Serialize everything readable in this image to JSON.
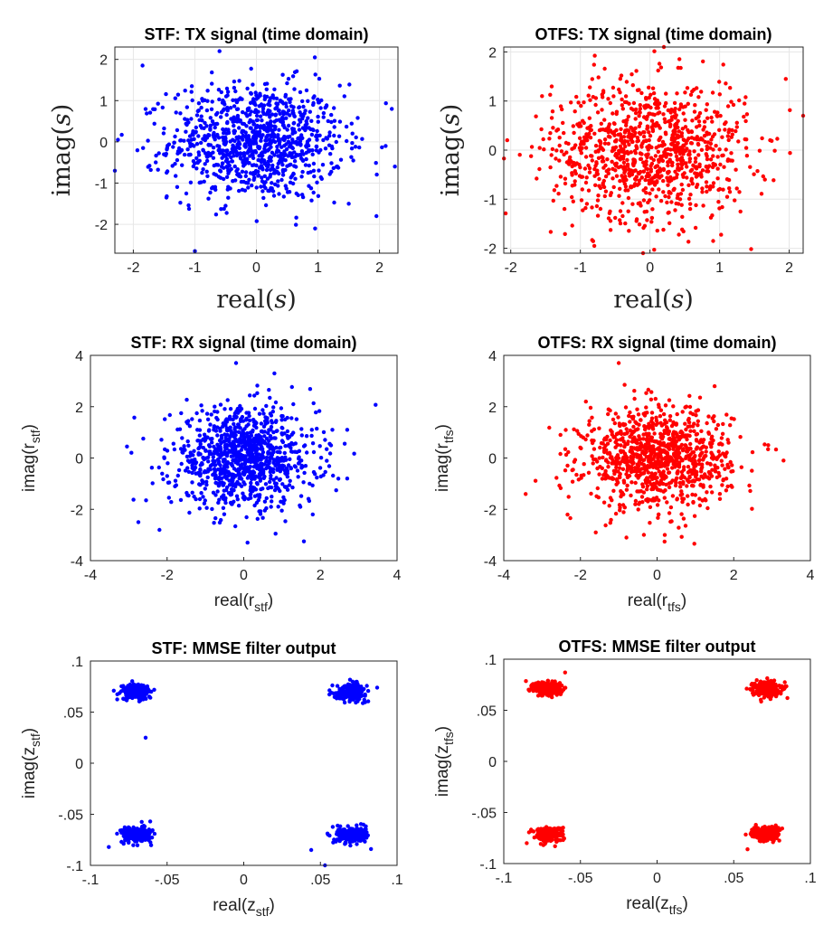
{
  "chart_data": [
    {
      "type": "scatter",
      "title": "STF: TX signal (time domain)",
      "xlabel": {
        "main": "real",
        "arg": "s",
        "sub": "",
        "style": "serif"
      },
      "ylabel": {
        "main": "imag",
        "arg": "s",
        "sub": "",
        "style": "serif"
      },
      "xlim": [
        -2.3,
        2.3
      ],
      "ylim": [
        -2.7,
        2.3
      ],
      "xticks": [
        -2,
        -1,
        0,
        1,
        2
      ],
      "yticks": [
        -2,
        -1,
        0,
        1,
        2
      ],
      "grid": true,
      "color": "#0000ff",
      "series": [
        {
          "cluster": {
            "center": [
              0,
              0
            ],
            "sd": [
              0.7,
              0.7
            ],
            "count": 1000
          },
          "points": [
            [
              -2.25,
              0.05
            ],
            [
              -2.3,
              -0.7
            ],
            [
              -1.85,
              1.85
            ],
            [
              -1.0,
              -2.65
            ],
            [
              -0.6,
              2.2
            ],
            [
              0.95,
              2.05
            ],
            [
              2.2,
              0.8
            ],
            [
              2.25,
              -0.6
            ],
            [
              1.95,
              -1.8
            ],
            [
              -1.05,
              1.35
            ],
            [
              1.5,
              -1.5
            ]
          ]
        }
      ]
    },
    {
      "type": "scatter",
      "title": "OTFS: TX signal (time domain)",
      "xlabel": {
        "main": "real",
        "arg": "s",
        "sub": "",
        "style": "serif"
      },
      "ylabel": {
        "main": "imag",
        "arg": "s",
        "sub": "",
        "style": "serif"
      },
      "xlim": [
        -2.1,
        2.2
      ],
      "ylim": [
        -2.1,
        2.1
      ],
      "xticks": [
        -2,
        -1,
        0,
        1,
        2
      ],
      "yticks": [
        -2,
        -1,
        0,
        1,
        2
      ],
      "grid": true,
      "color": "#ff0000",
      "series": [
        {
          "cluster": {
            "center": [
              0,
              0
            ],
            "sd": [
              0.7,
              0.7
            ],
            "count": 1000
          },
          "points": [
            [
              -2.05,
              0.2
            ],
            [
              -1.55,
              1.1
            ],
            [
              -0.1,
              -2.1
            ],
            [
              0.2,
              2.1
            ],
            [
              1.0,
              2.15
            ],
            [
              2.2,
              0.7
            ],
            [
              1.95,
              1.45
            ],
            [
              1.3,
              -1.25
            ],
            [
              -0.8,
              -1.95
            ],
            [
              1.65,
              -0.6
            ]
          ]
        }
      ]
    },
    {
      "type": "scatter",
      "title": "STF: RX signal (time domain)",
      "xlabel": {
        "main": "real",
        "arg": "r",
        "sub": "stf",
        "style": "sans"
      },
      "ylabel": {
        "main": "imag",
        "arg": "r",
        "sub": "stf",
        "style": "sans"
      },
      "xlim": [
        -4,
        4
      ],
      "ylim": [
        -4,
        4
      ],
      "xticks": [
        -4,
        -2,
        0,
        2,
        4
      ],
      "yticks": [
        -4,
        -2,
        0,
        2,
        4
      ],
      "grid": false,
      "color": "#0000ff",
      "series": [
        {
          "cluster": {
            "center": [
              0,
              0
            ],
            "sd": [
              0.95,
              0.95
            ],
            "count": 1000
          },
          "points": [
            [
              -0.2,
              3.7
            ],
            [
              0.8,
              3.3
            ],
            [
              2.7,
              1.1
            ],
            [
              2.7,
              -0.8
            ],
            [
              -2.75,
              -2.5
            ],
            [
              0.1,
              -3.3
            ],
            [
              -2.2,
              -2.8
            ],
            [
              1.8,
              -2.2
            ]
          ]
        }
      ]
    },
    {
      "type": "scatter",
      "title": "OTFS: RX signal (time domain)",
      "xlabel": {
        "main": "real",
        "arg": "r",
        "sub": "tfs",
        "style": "sans"
      },
      "ylabel": {
        "main": "imag",
        "arg": "r",
        "sub": "tfs",
        "style": "sans"
      },
      "xlim": [
        -4,
        4
      ],
      "ylim": [
        -4,
        4
      ],
      "xticks": [
        -4,
        -2,
        0,
        2,
        4
      ],
      "yticks": [
        -4,
        -2,
        0,
        2,
        4
      ],
      "grid": false,
      "color": "#ff0000",
      "series": [
        {
          "cluster": {
            "center": [
              0,
              0
            ],
            "sd": [
              0.95,
              0.95
            ],
            "count": 1000
          },
          "points": [
            [
              -1.0,
              3.7
            ],
            [
              3.3,
              -0.1
            ],
            [
              2.9,
              0.5
            ],
            [
              0.2,
              -3.0
            ],
            [
              -0.8,
              -3.1
            ],
            [
              -1.6,
              -2.9
            ],
            [
              1.5,
              2.8
            ]
          ]
        }
      ]
    },
    {
      "type": "scatter",
      "title": "STF: MMSE filter output",
      "xlabel": {
        "main": "real",
        "arg": "z",
        "sub": "stf",
        "style": "sans"
      },
      "ylabel": {
        "main": "imag",
        "arg": "z",
        "sub": "stf",
        "style": "sans"
      },
      "xlim": [
        -0.1,
        0.1
      ],
      "ylim": [
        -0.1,
        0.1
      ],
      "xticks": [
        -0.1,
        -0.05,
        0,
        0.05,
        0.1
      ],
      "yticks": [
        -0.1,
        -0.05,
        0,
        0.05,
        0.1
      ],
      "grid": false,
      "color": "#0000ff",
      "series": [
        {
          "clusters": [
            {
              "center": [
                -0.07,
                0.07
              ],
              "sd": [
                0.0048,
                0.0038
              ],
              "count": 220
            },
            {
              "center": [
                0.07,
                0.07
              ],
              "sd": [
                0.0048,
                0.0038
              ],
              "count": 220
            },
            {
              "center": [
                -0.07,
                -0.07
              ],
              "sd": [
                0.0048,
                0.0038
              ],
              "count": 220
            },
            {
              "center": [
                0.07,
                -0.07
              ],
              "sd": [
                0.0048,
                0.0038
              ],
              "count": 220
            }
          ],
          "points": [
            [
              -0.058,
              0.103
            ],
            [
              -0.064,
              0.025
            ],
            [
              0.044,
              -0.085
            ],
            [
              0.053,
              -0.1
            ],
            [
              -0.088,
              -0.082
            ],
            [
              0.087,
              0.074
            ],
            [
              -0.061,
              -0.057
            ],
            [
              0.083,
              -0.084
            ]
          ]
        }
      ]
    },
    {
      "type": "scatter",
      "title": "OTFS: MMSE filter output",
      "xlabel": {
        "main": "real",
        "arg": "z",
        "sub": "tfs",
        "style": "sans"
      },
      "ylabel": {
        "main": "imag",
        "arg": "z",
        "sub": "tfs",
        "style": "sans"
      },
      "xlim": [
        -0.1,
        0.1
      ],
      "ylim": [
        -0.1,
        0.1
      ],
      "xticks": [
        -0.1,
        -0.05,
        0,
        0.05,
        0.1
      ],
      "yticks": [
        -0.1,
        -0.05,
        0,
        0.05,
        0.1
      ],
      "grid": false,
      "color": "#ff0000",
      "series": [
        {
          "clusters": [
            {
              "center": [
                -0.071,
                0.071
              ],
              "sd": [
                0.0045,
                0.0035
              ],
              "count": 260
            },
            {
              "center": [
                0.071,
                0.071
              ],
              "sd": [
                0.0045,
                0.0035
              ],
              "count": 260
            },
            {
              "center": [
                -0.071,
                -0.071
              ],
              "sd": [
                0.0045,
                0.0035
              ],
              "count": 260
            },
            {
              "center": [
                0.071,
                -0.071
              ],
              "sd": [
                0.0045,
                0.0035
              ],
              "count": 260
            }
          ],
          "points": [
            [
              0.085,
              0.062
            ],
            [
              -0.085,
              -0.08
            ],
            [
              0.059,
              -0.086
            ],
            [
              -0.06,
              0.087
            ]
          ]
        }
      ]
    }
  ]
}
